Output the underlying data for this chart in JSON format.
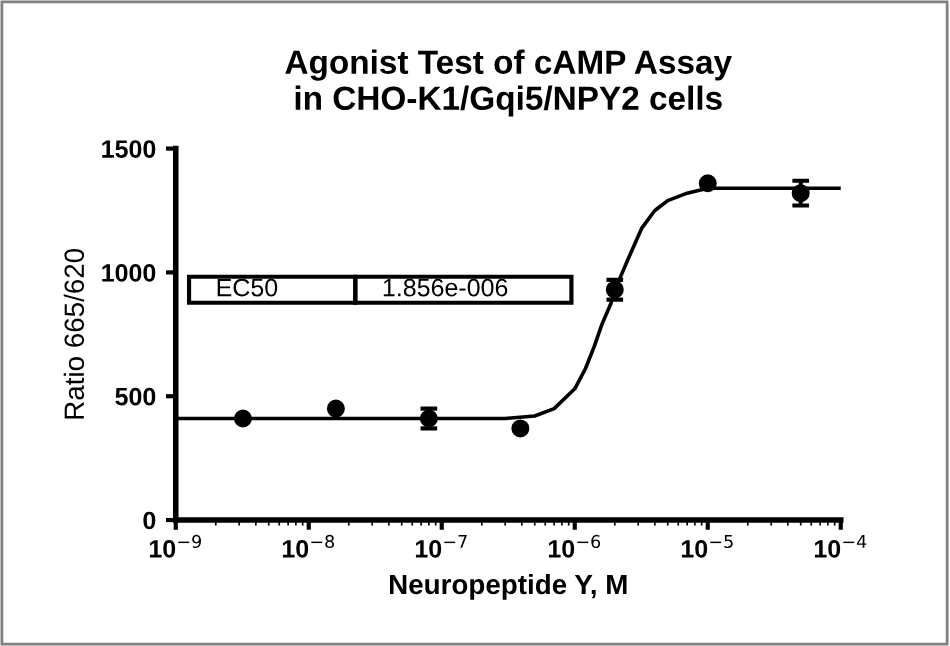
{
  "chart_data": {
    "type": "scatter",
    "title": "Agonist Test of cAMP Assay\nin CHO-K1/Gqi5/NPY2 cells",
    "xlabel": "Neuropeptide Y, M",
    "ylabel": "Ratio 665/620",
    "log": "x",
    "xlim": [
      1e-09,
      0.0001
    ],
    "ylim": [
      0,
      1500
    ],
    "xticks": [
      {
        "value": 1e-09,
        "label": "10$^{−9}$"
      },
      {
        "value": 1e-08,
        "label": "10$^{−8}$"
      },
      {
        "value": 1e-07,
        "label": "10$^{−7}$"
      },
      {
        "value": 1e-06,
        "label": "10$^{−6}$"
      },
      {
        "value": 1e-05,
        "label": "10$^{−5}$"
      },
      {
        "value": 0.0001,
        "label": "10$^{−4}$"
      }
    ],
    "yticks": [
      0,
      500,
      1000,
      1500
    ],
    "grid": false,
    "annotations": [
      "EC50",
      "1.856e-006"
    ],
    "series": [
      {
        "color": "#000000",
        "marker": "circle",
        "x": [
          3.2e-09,
          1.6e-08,
          8e-08,
          3.9e-07,
          2e-06,
          1e-05,
          5e-05
        ],
        "values": [
          410,
          450,
          410,
          370,
          930,
          1360,
          1320
        ],
        "errors": [
          null,
          null,
          40,
          null,
          40,
          null,
          50
        ]
      },
      {
        "type": "line",
        "color": "#000000",
        "marker": "none",
        "line_style": "solid",
        "x": [
          1e-09,
          1e-07,
          3e-07,
          5e-07,
          7e-07,
          1e-06,
          1.2e-06,
          1.4e-06,
          1.6e-06,
          1.856e-06,
          2.2e-06,
          2.5e-06,
          3.2e-06,
          4e-06,
          5e-06,
          7e-06,
          1e-05,
          0.0001
        ],
        "values": [
          410,
          410,
          410,
          420,
          450,
          530,
          610,
          700,
          790,
          870,
          980,
          1050,
          1180,
          1250,
          1290,
          1320,
          1340,
          1340
        ]
      }
    ]
  }
}
